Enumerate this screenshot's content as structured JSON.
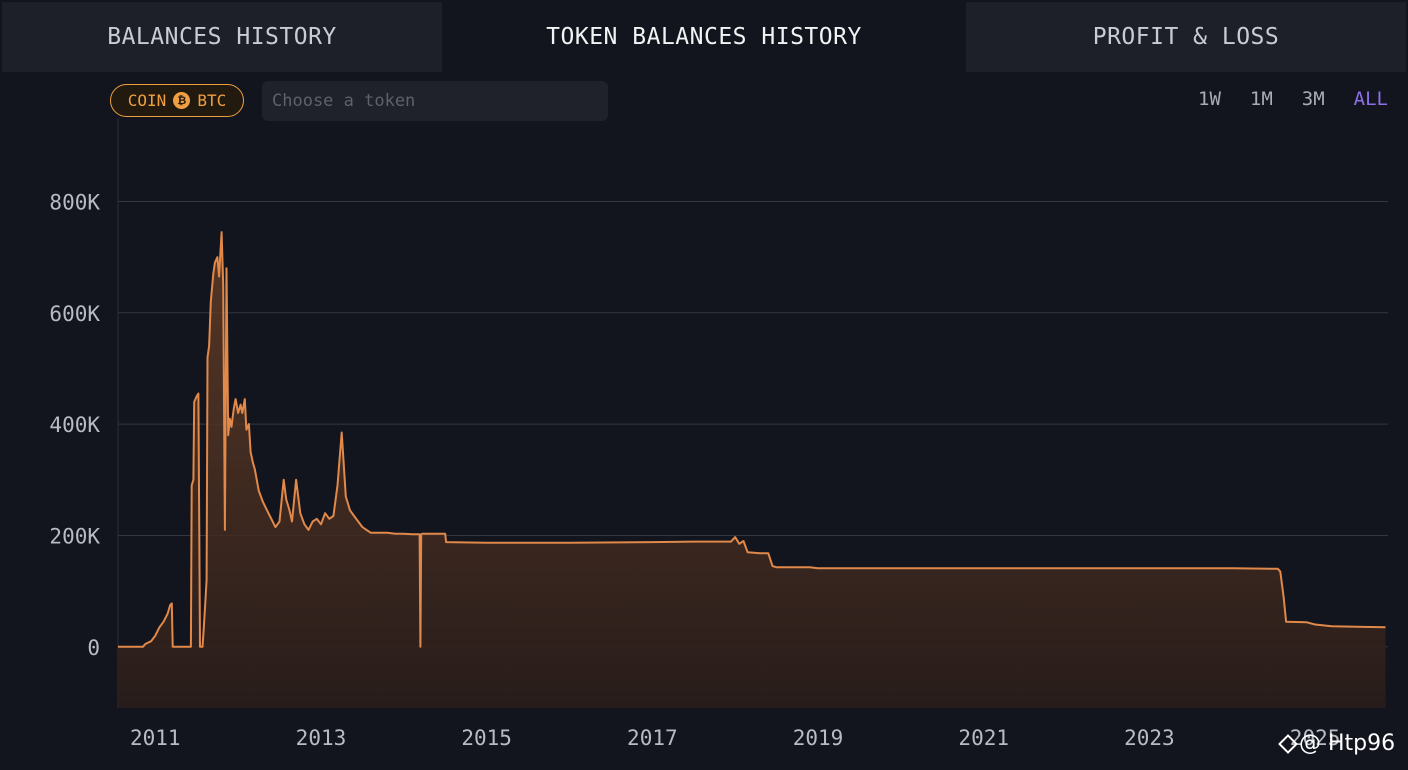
{
  "tabs": [
    {
      "label": "BALANCES HISTORY",
      "active": false
    },
    {
      "label": "TOKEN BALANCES HISTORY",
      "active": true
    },
    {
      "label": "PROFIT & LOSS",
      "active": false
    }
  ],
  "filter": {
    "coin_label": "COIN",
    "coin_icon": "bitcoin-icon",
    "coin_symbol": "BTC",
    "token_placeholder": "Choose a token",
    "token_value": ""
  },
  "ranges": [
    {
      "label": "1W",
      "active": false
    },
    {
      "label": "1M",
      "active": false
    },
    {
      "label": "3M",
      "active": false
    },
    {
      "label": "ALL",
      "active": true
    }
  ],
  "colors": {
    "line": "#e0894a",
    "range_active": "#8f6fe6",
    "coin_accent": "#f0a040"
  },
  "watermark": {
    "icon": "diamond-icon",
    "text": "@ Htp96"
  },
  "chart_data": {
    "type": "area",
    "title": "",
    "xlabel": "",
    "ylabel": "",
    "x_ticks": [
      "2011",
      "2013",
      "2015",
      "2017",
      "2019",
      "2021",
      "2023",
      "2025"
    ],
    "y_ticks": [
      "0",
      "200K",
      "400K",
      "600K",
      "800K"
    ],
    "y_tick_values": [
      0,
      200000,
      400000,
      600000,
      800000
    ],
    "xlim": [
      2010.55,
      2025.88
    ],
    "ylim": [
      -110000,
      950000
    ],
    "grid": true,
    "series": [
      {
        "x": [
          2010.55,
          2010.85,
          2010.88,
          2010.95,
          2011.0,
          2011.05,
          2011.1,
          2011.15,
          2011.18,
          2011.2,
          2011.21,
          2011.25,
          2011.3,
          2011.35,
          2011.4,
          2011.43,
          2011.44,
          2011.46,
          2011.47,
          2011.5,
          2011.52,
          2011.54,
          2011.57,
          2011.58,
          2011.6,
          2011.62,
          2011.63,
          2011.65,
          2011.67,
          2011.7,
          2011.72,
          2011.75,
          2011.77,
          2011.8,
          2011.82,
          2011.84,
          2011.86,
          2011.88,
          2011.9,
          2011.92,
          2011.94,
          2011.95,
          2011.97,
          2012.0,
          2012.03,
          2012.05,
          2012.08,
          2012.1,
          2012.13,
          2012.15,
          2012.18,
          2012.2,
          2012.25,
          2012.3,
          2012.35,
          2012.4,
          2012.45,
          2012.5,
          2012.55,
          2012.58,
          2012.62,
          2012.65,
          2012.7,
          2012.75,
          2012.8,
          2012.85,
          2012.9,
          2012.95,
          2013.0,
          2013.05,
          2013.1,
          2013.15,
          2013.2,
          2013.25,
          2013.3,
          2013.35,
          2013.4,
          2013.45,
          2013.5,
          2013.55,
          2013.6,
          2013.7,
          2013.8,
          2013.9,
          2014.0,
          2014.1,
          2014.19,
          2014.2,
          2014.21,
          2014.22,
          2014.5,
          2014.51,
          2015.0,
          2016.0,
          2017.0,
          2017.5,
          2017.95,
          2018.0,
          2018.05,
          2018.1,
          2018.15,
          2018.3,
          2018.4,
          2018.45,
          2018.5,
          2018.9,
          2019.0,
          2020.0,
          2021.0,
          2022.0,
          2023.0,
          2024.0,
          2024.55,
          2024.58,
          2024.62,
          2024.65,
          2024.9,
          2025.0,
          2025.2,
          2025.5,
          2025.85
        ],
        "y": [
          0,
          0,
          5000,
          10000,
          20000,
          35000,
          45000,
          60000,
          75000,
          78000,
          0,
          0,
          0,
          0,
          0,
          0,
          290000,
          300000,
          440000,
          450000,
          455000,
          0,
          0,
          20000,
          70000,
          120000,
          520000,
          540000,
          620000,
          670000,
          690000,
          700000,
          665000,
          745000,
          650000,
          210000,
          680000,
          380000,
          410000,
          395000,
          420000,
          430000,
          445000,
          420000,
          435000,
          420000,
          445000,
          390000,
          400000,
          350000,
          330000,
          320000,
          280000,
          260000,
          245000,
          230000,
          215000,
          225000,
          300000,
          265000,
          245000,
          225000,
          300000,
          240000,
          220000,
          210000,
          225000,
          230000,
          220000,
          240000,
          230000,
          235000,
          290000,
          385000,
          270000,
          245000,
          235000,
          225000,
          215000,
          210000,
          205000,
          205000,
          205000,
          203000,
          203000,
          202000,
          202000,
          0,
          202000,
          203000,
          203000,
          188000,
          187000,
          187000,
          188000,
          189000,
          189000,
          197000,
          185000,
          190000,
          170000,
          168000,
          168000,
          145000,
          143000,
          143000,
          141000,
          141000,
          141000,
          141000,
          141000,
          141000,
          140000,
          135000,
          90000,
          45000,
          44000,
          40000,
          37000,
          36000,
          35000
        ]
      }
    ]
  }
}
